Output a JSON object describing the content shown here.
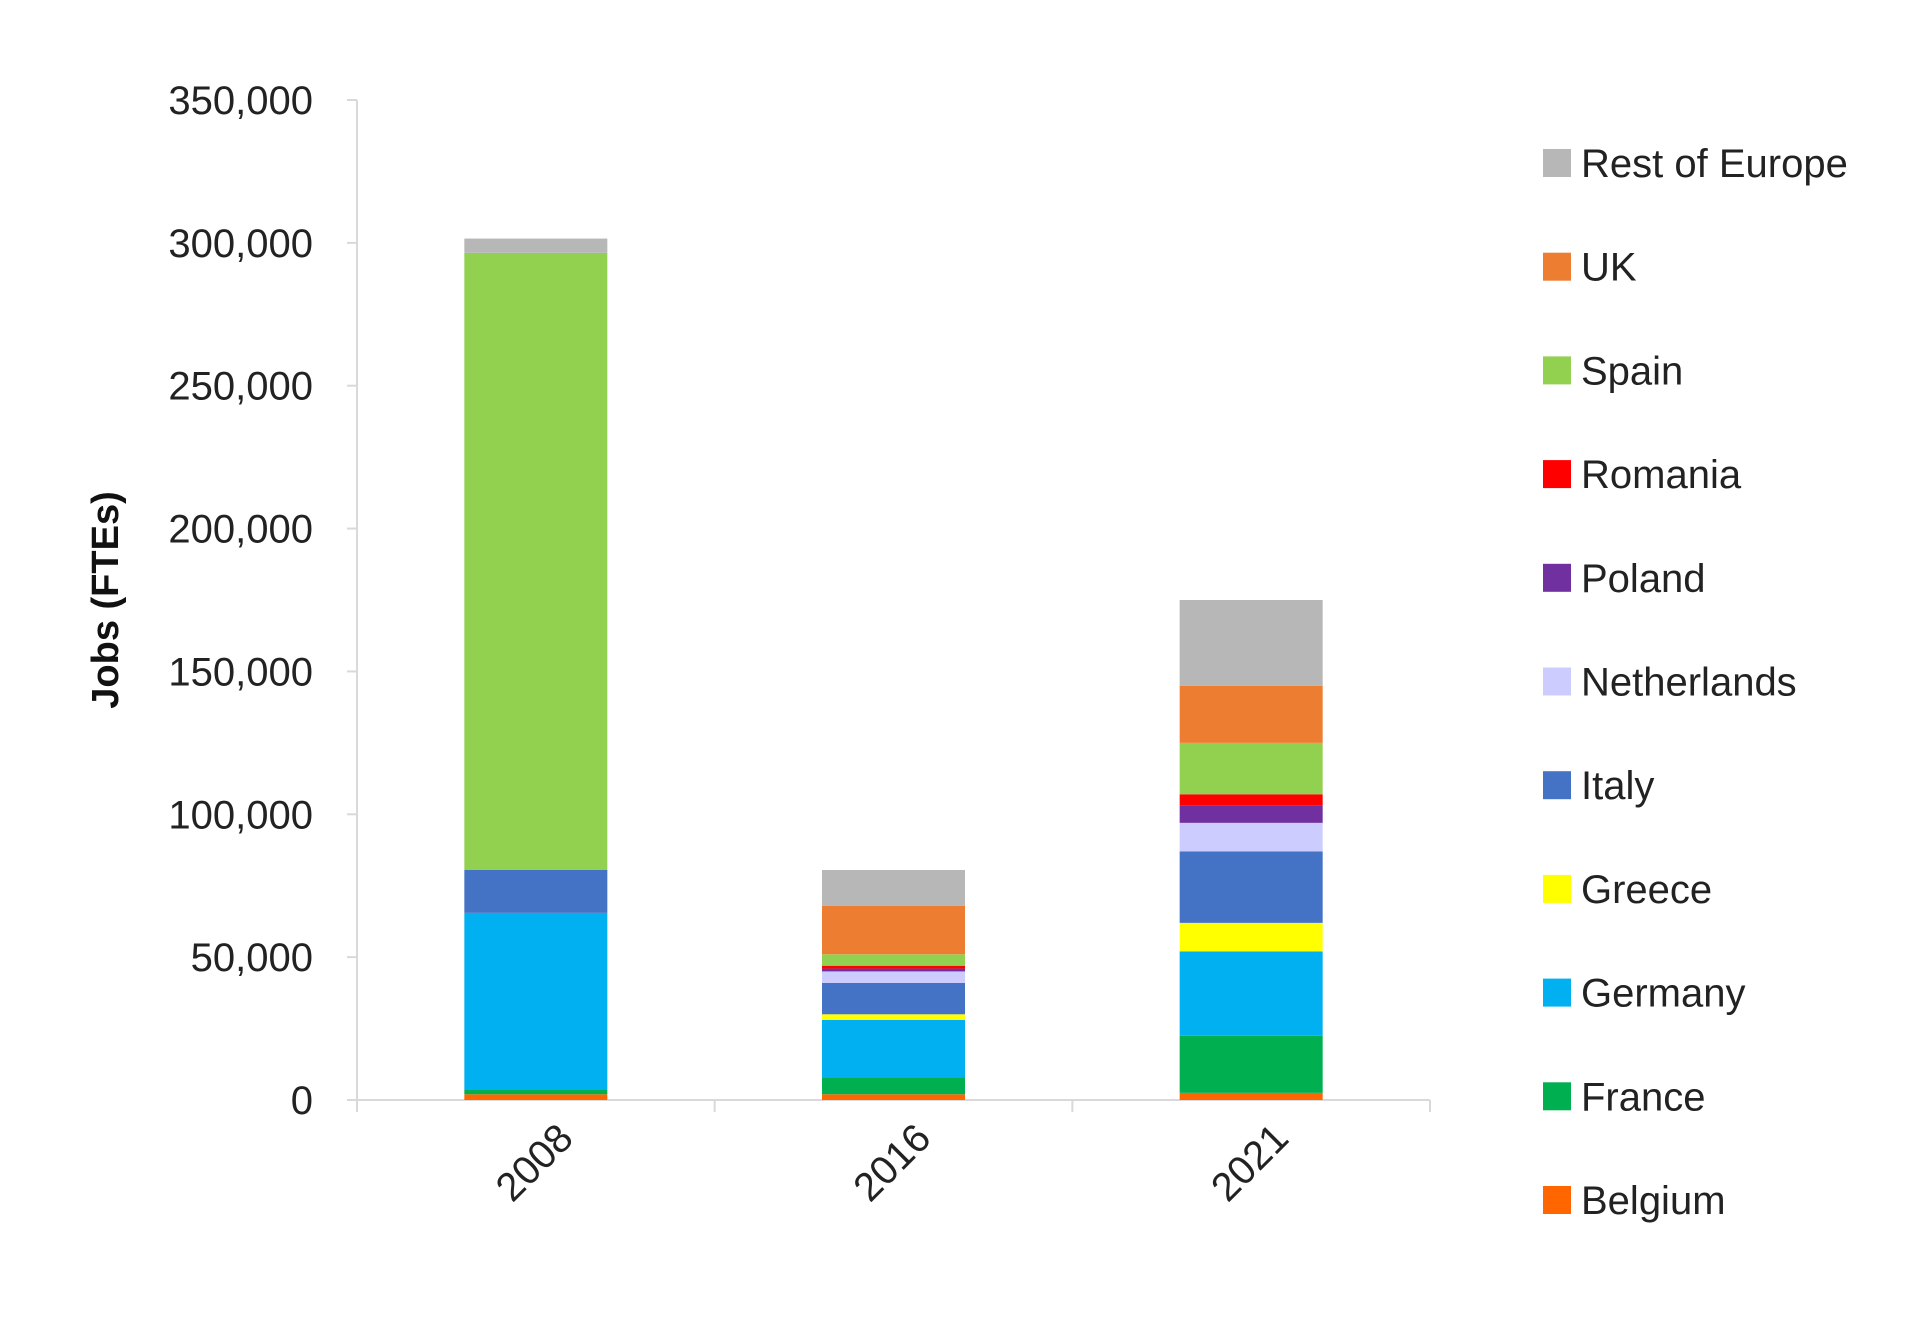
{
  "chart_data": {
    "type": "bar",
    "stacked": true,
    "title": "",
    "xlabel": "",
    "ylabel": "Jobs (FTEs)",
    "ylim": [
      0,
      350000
    ],
    "yticks": [
      0,
      50000,
      100000,
      150000,
      200000,
      250000,
      300000,
      350000
    ],
    "ytick_labels": [
      "0",
      "50,000",
      "100,000",
      "150,000",
      "200,000",
      "250,000",
      "300,000",
      "350,000"
    ],
    "grid": false,
    "legend_position": "right",
    "categories": [
      "2008",
      "2016",
      "2021"
    ],
    "series": [
      {
        "name": "Belgium",
        "color": "#FF6600",
        "values": [
          2000,
          2000,
          2500
        ]
      },
      {
        "name": "France",
        "color": "#00B050",
        "values": [
          1500,
          6000,
          20000
        ]
      },
      {
        "name": "Germany",
        "color": "#00B0F0",
        "values": [
          62000,
          20000,
          29500
        ]
      },
      {
        "name": "Greece",
        "color": "#FFFF00",
        "values": [
          0,
          2000,
          10000
        ]
      },
      {
        "name": "Italy",
        "color": "#4472C4",
        "values": [
          15000,
          11000,
          25000
        ]
      },
      {
        "name": "Netherlands",
        "color": "#CCCCFF",
        "values": [
          0,
          4000,
          10000
        ]
      },
      {
        "name": "Poland",
        "color": "#7030A0",
        "values": [
          0,
          1000,
          6000
        ]
      },
      {
        "name": "Romania",
        "color": "#FF0000",
        "values": [
          0,
          1000,
          4000
        ]
      },
      {
        "name": "Spain",
        "color": "#92D050",
        "values": [
          216000,
          4000,
          18000
        ]
      },
      {
        "name": "UK",
        "color": "#ED7D31",
        "values": [
          0,
          17000,
          20000
        ]
      },
      {
        "name": "Rest of Europe",
        "color": "#B7B7B7",
        "values": [
          5000,
          12500,
          30000
        ]
      }
    ]
  }
}
